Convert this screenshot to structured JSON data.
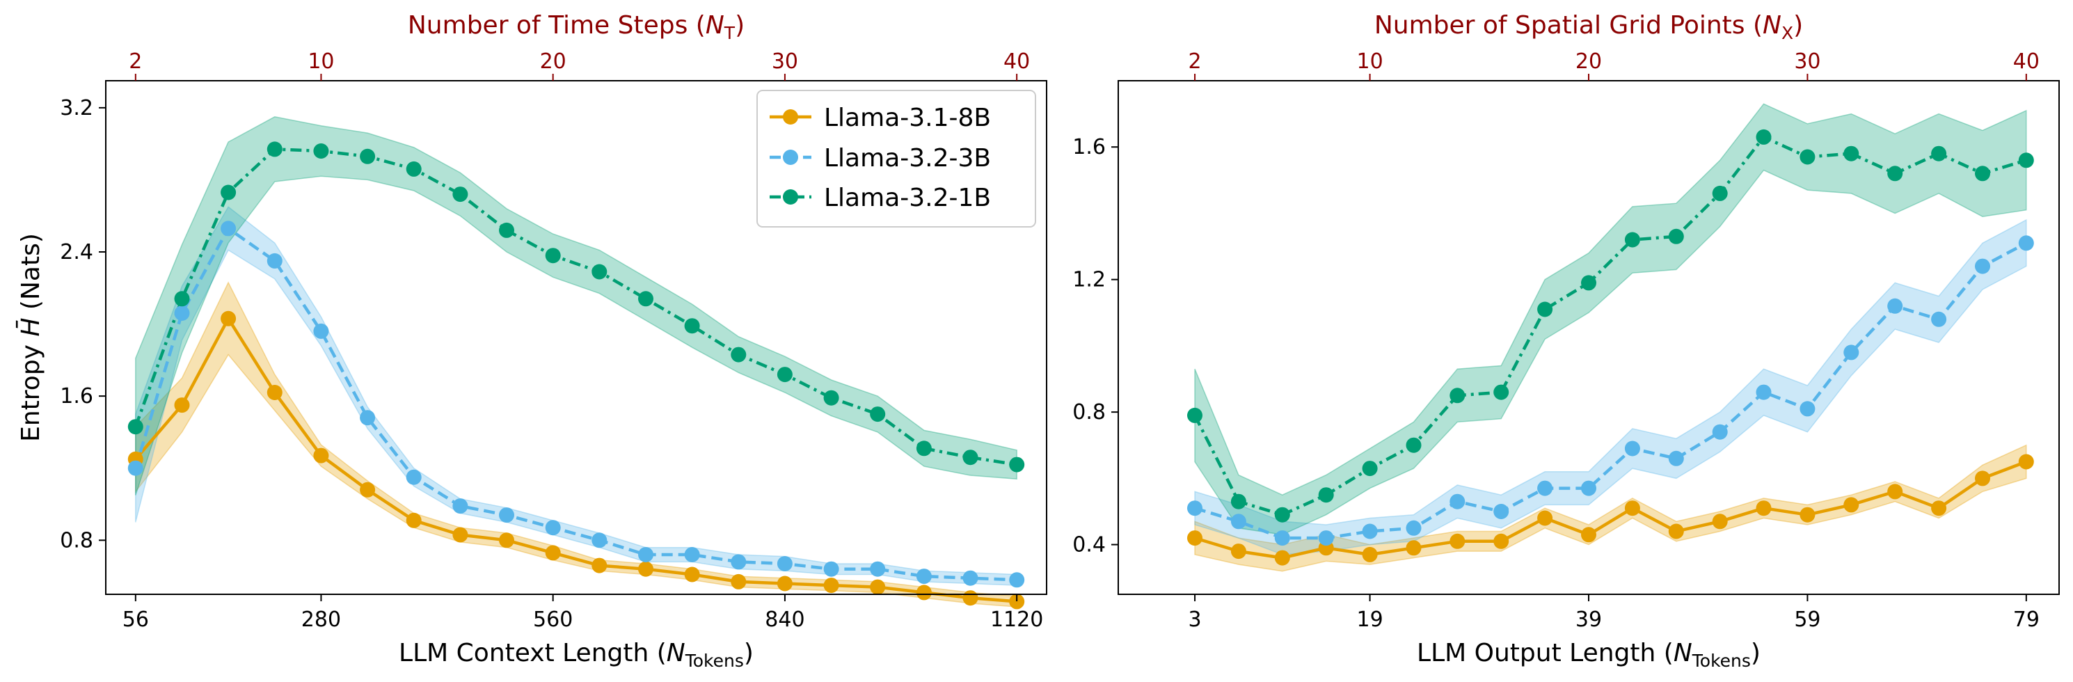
{
  "colors": {
    "llama_3_1_8b": "#e69f00",
    "llama_3_2_3b": "#56b4e9",
    "llama_3_2_1b": "#009e73",
    "top_axis": "#8b0000"
  },
  "legend": {
    "llama_3_1_8b": "Llama-3.1-8B",
    "llama_3_2_3b": "Llama-3.2-3B",
    "llama_3_2_1b": "Llama-3.2-1B"
  },
  "left": {
    "ylabel_prefix": "Entropy ",
    "ylabel_symbol": "H̄",
    "ylabel_suffix": " (Nats)",
    "xlabel_prefix": "LLM Context Length (",
    "xlabel_var": "N",
    "xlabel_sub": "Tokens",
    "xlabel_suffix": ")",
    "top_label_prefix": "Number of Time Steps (",
    "top_label_var": "N",
    "top_label_sub": "T",
    "top_label_suffix": ")",
    "x_ticks": [
      "56",
      "280",
      "560",
      "840",
      "1120"
    ],
    "top_ticks": [
      "2",
      "10",
      "20",
      "30",
      "40"
    ],
    "y_ticks": [
      "0.8",
      "1.6",
      "2.4",
      "3.2"
    ]
  },
  "right": {
    "xlabel_prefix": "LLM Output Length (",
    "xlabel_var": "N",
    "xlabel_sub": "Tokens",
    "xlabel_suffix": ")",
    "top_label_prefix": "Number of Spatial Grid Points (",
    "top_label_var": "N",
    "top_label_sub": "X",
    "top_label_suffix": ")",
    "x_ticks": [
      "3",
      "19",
      "39",
      "59",
      "79"
    ],
    "top_ticks": [
      "2",
      "10",
      "20",
      "30",
      "40"
    ],
    "y_ticks": [
      "0.4",
      "0.8",
      "1.2",
      "1.6"
    ]
  },
  "chart_data": [
    {
      "type": "line",
      "title": "",
      "xlabel": "LLM Context Length (N_Tokens)",
      "ylabel": "Entropy H̄ (Nats)",
      "top_xlabel": "Number of Time Steps (N_T)",
      "x": [
        56,
        112,
        168,
        224,
        280,
        336,
        392,
        448,
        504,
        560,
        616,
        672,
        728,
        784,
        840,
        896,
        952,
        1008,
        1064,
        1120
      ],
      "top_x": [
        2,
        4,
        6,
        8,
        10,
        12,
        14,
        16,
        18,
        20,
        22,
        24,
        26,
        28,
        30,
        32,
        34,
        36,
        38,
        40
      ],
      "xlim": [
        20,
        1156
      ],
      "ylim": [
        0.5,
        3.35
      ],
      "series": [
        {
          "name": "Llama-3.1-8B",
          "style": "solid",
          "values": [
            1.25,
            1.55,
            2.03,
            1.62,
            1.27,
            1.08,
            0.91,
            0.83,
            0.8,
            0.73,
            0.66,
            0.64,
            0.61,
            0.57,
            0.56,
            0.55,
            0.54,
            0.51,
            0.48,
            0.46
          ],
          "band": [
            0.18,
            0.15,
            0.2,
            0.1,
            0.06,
            0.05,
            0.04,
            0.04,
            0.04,
            0.04,
            0.03,
            0.03,
            0.03,
            0.03,
            0.03,
            0.03,
            0.03,
            0.03,
            0.03,
            0.03
          ]
        },
        {
          "name": "Llama-3.2-3B",
          "style": "dashed",
          "values": [
            1.2,
            2.06,
            2.53,
            2.35,
            1.96,
            1.48,
            1.15,
            0.99,
            0.94,
            0.87,
            0.8,
            0.72,
            0.72,
            0.68,
            0.67,
            0.64,
            0.64,
            0.6,
            0.59,
            0.58
          ],
          "band": [
            0.3,
            0.15,
            0.12,
            0.1,
            0.08,
            0.06,
            0.05,
            0.04,
            0.04,
            0.04,
            0.04,
            0.04,
            0.04,
            0.04,
            0.04,
            0.03,
            0.03,
            0.03,
            0.03,
            0.03
          ]
        },
        {
          "name": "Llama-3.2-1B",
          "style": "dashdot",
          "values": [
            1.43,
            2.14,
            2.73,
            2.97,
            2.96,
            2.93,
            2.86,
            2.72,
            2.52,
            2.38,
            2.29,
            2.14,
            1.99,
            1.83,
            1.72,
            1.59,
            1.5,
            1.31,
            1.26,
            1.22
          ],
          "band": [
            0.38,
            0.3,
            0.28,
            0.18,
            0.14,
            0.13,
            0.12,
            0.12,
            0.12,
            0.12,
            0.12,
            0.12,
            0.12,
            0.1,
            0.1,
            0.1,
            0.1,
            0.1,
            0.1,
            0.08
          ]
        }
      ]
    },
    {
      "type": "line",
      "title": "",
      "xlabel": "LLM Output Length (N_Tokens)",
      "ylabel": "",
      "top_xlabel": "Number of Spatial Grid Points (N_X)",
      "x": [
        3,
        7,
        11,
        15,
        19,
        23,
        27,
        31,
        35,
        39,
        43,
        47,
        51,
        55,
        59,
        63,
        67,
        71,
        75,
        79
      ],
      "top_x": [
        2,
        4,
        6,
        8,
        10,
        12,
        14,
        16,
        18,
        20,
        22,
        24,
        26,
        28,
        30,
        32,
        34,
        36,
        38,
        40
      ],
      "xlim": [
        -4,
        82
      ],
      "ylim": [
        0.25,
        1.8
      ],
      "series": [
        {
          "name": "Llama-3.1-8B",
          "style": "solid",
          "values": [
            0.42,
            0.38,
            0.36,
            0.39,
            0.37,
            0.39,
            0.41,
            0.41,
            0.48,
            0.43,
            0.51,
            0.44,
            0.47,
            0.51,
            0.49,
            0.52,
            0.56,
            0.51,
            0.6,
            0.65
          ],
          "band": [
            0.05,
            0.04,
            0.04,
            0.04,
            0.03,
            0.03,
            0.03,
            0.03,
            0.03,
            0.03,
            0.03,
            0.03,
            0.03,
            0.03,
            0.03,
            0.03,
            0.03,
            0.03,
            0.04,
            0.05
          ]
        },
        {
          "name": "Llama-3.2-3B",
          "style": "dashed",
          "values": [
            0.51,
            0.47,
            0.42,
            0.42,
            0.44,
            0.45,
            0.53,
            0.5,
            0.57,
            0.57,
            0.69,
            0.66,
            0.74,
            0.86,
            0.81,
            0.98,
            1.12,
            1.08,
            1.24,
            1.31
          ],
          "band": [
            0.05,
            0.05,
            0.05,
            0.04,
            0.04,
            0.04,
            0.05,
            0.05,
            0.05,
            0.05,
            0.06,
            0.06,
            0.06,
            0.07,
            0.07,
            0.07,
            0.07,
            0.07,
            0.07,
            0.07
          ]
        },
        {
          "name": "Llama-3.2-1B",
          "style": "dashdot",
          "values": [
            0.79,
            0.53,
            0.49,
            0.55,
            0.63,
            0.7,
            0.85,
            0.86,
            1.11,
            1.19,
            1.32,
            1.33,
            1.46,
            1.63,
            1.57,
            1.58,
            1.52,
            1.58,
            1.52,
            1.56
          ],
          "band": [
            0.14,
            0.08,
            0.06,
            0.06,
            0.06,
            0.07,
            0.08,
            0.08,
            0.09,
            0.09,
            0.1,
            0.1,
            0.1,
            0.1,
            0.1,
            0.12,
            0.12,
            0.12,
            0.13,
            0.15
          ]
        }
      ]
    }
  ]
}
